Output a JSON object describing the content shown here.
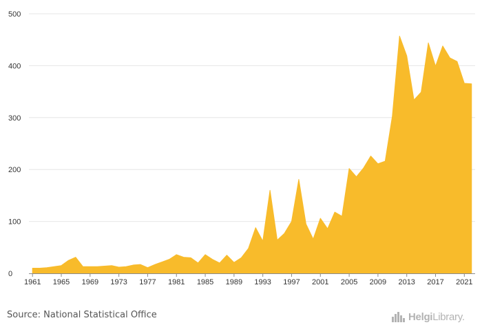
{
  "chart_data": {
    "type": "area",
    "title": "",
    "xlabel": "",
    "ylabel": "",
    "ylim": [
      0,
      500
    ],
    "yticks": [
      0,
      100,
      200,
      300,
      400,
      500
    ],
    "xticks": [
      1961,
      1965,
      1969,
      1973,
      1977,
      1981,
      1985,
      1989,
      1993,
      1997,
      2001,
      2005,
      2009,
      2013,
      2017,
      2021
    ],
    "grid": true,
    "legend": "none",
    "color": "#f8bb2b",
    "series": [
      {
        "x": [
          1961,
          1962,
          1963,
          1964,
          1965,
          1966,
          1967,
          1968,
          1969,
          1970,
          1971,
          1972,
          1973,
          1974,
          1975,
          1976,
          1977,
          1978,
          1979,
          1980,
          1981,
          1982,
          1983,
          1984,
          1985,
          1986,
          1987,
          1988,
          1989,
          1990,
          1991,
          1992,
          1993,
          1994,
          1995,
          1996,
          1997,
          1998,
          1999,
          2000,
          2001,
          2002,
          2003,
          2004,
          2005,
          2006,
          2007,
          2008,
          2009,
          2010,
          2011,
          2012,
          2013,
          2014,
          2015,
          2016,
          2017,
          2018,
          2019,
          2020,
          2021,
          2022
        ],
        "values": [
          10,
          10,
          11,
          13,
          15,
          25,
          31,
          13,
          13,
          13,
          14,
          15,
          12,
          13,
          16,
          17,
          11,
          17,
          22,
          27,
          36,
          31,
          30,
          20,
          36,
          27,
          20,
          35,
          21,
          30,
          48,
          88,
          62,
          160,
          64,
          77,
          100,
          181,
          95,
          66,
          106,
          86,
          118,
          110,
          202,
          186,
          203,
          226,
          211,
          216,
          303,
          457,
          419,
          334,
          349,
          444,
          399,
          438,
          415,
          408,
          366,
          365
        ]
      }
    ]
  },
  "footer": {
    "source": "Source: National Statistical Office",
    "brand_bold": "Helgi",
    "brand_light": "Library."
  }
}
